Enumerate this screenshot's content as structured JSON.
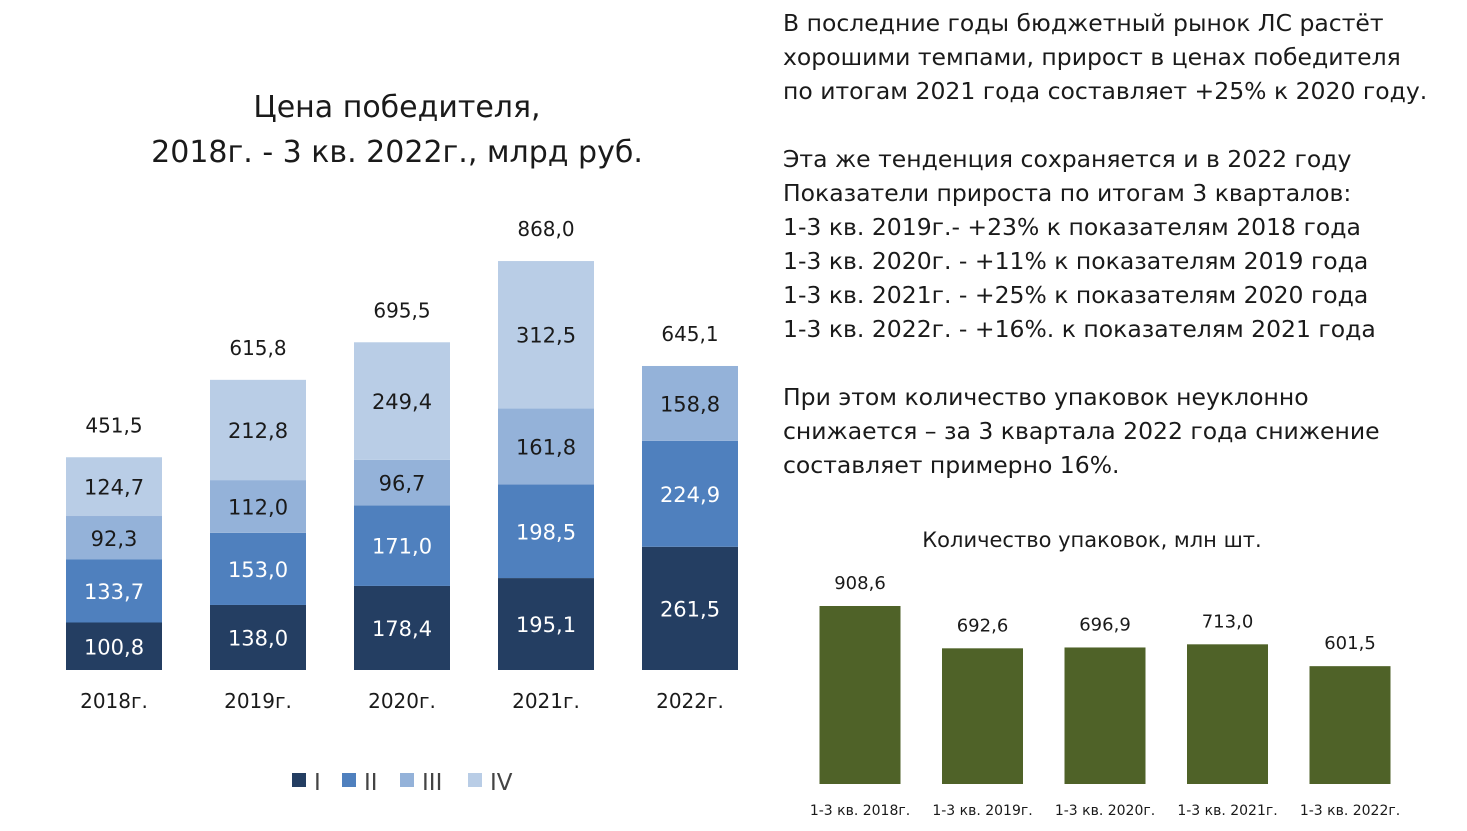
{
  "commentary": {
    "paragraphs": [
      {
        "lines": [
          "В последние годы бюджетный рынок ЛС растёт",
          "хорошими темпами, прирост в ценах победителя",
          "по итогам 2021 года составляет +25% к 2020 году."
        ]
      },
      {
        "lines": [
          "Эта же тенденция сохраняется и в 2022 году",
          "Показатели прироста по итогам 3 кварталов:",
          "1-3 кв. 2019г.- +23% к показателям 2018 года",
          "1-3 кв. 2020г. - +11% к показателям 2019 года",
          "1-3 кв. 2021г. - +25% к показателям 2020 года",
          "1-3 кв. 2022г. - +16%. к показателям 2021 года"
        ]
      },
      {
        "lines": [
          "При этом количество упаковок неуклонно",
          "снижается – за 3 квартала 2022 года снижение",
          "составляет примерно 16%."
        ]
      }
    ]
  },
  "chart_data": [
    {
      "type": "bar",
      "stacked": true,
      "title": "Цена победителя,\n2018г. - 3 кв. 2022г., млрд руб.",
      "categories": [
        "2018г.",
        "2019г.",
        "2020г.",
        "2021г.",
        "2022г."
      ],
      "series": [
        {
          "name": "I",
          "color": "#243e62",
          "values": [
            100.8,
            138.0,
            178.4,
            195.1,
            261.5
          ],
          "labels": [
            "100,8",
            "138,0",
            "178,4",
            "195,1",
            "261,5"
          ]
        },
        {
          "name": "II",
          "color": "#4f80be",
          "values": [
            133.7,
            153.0,
            171.0,
            198.5,
            224.9
          ],
          "labels": [
            "133,7",
            "153,0",
            "171,0",
            "198,5",
            "224,9"
          ]
        },
        {
          "name": "III",
          "color": "#94b2d9",
          "values": [
            92.3,
            112.0,
            96.7,
            161.8,
            158.8
          ],
          "labels": [
            "92,3",
            "112,0",
            "96,7",
            "161,8",
            "158,8"
          ]
        },
        {
          "name": "IV",
          "color": "#b9cde6",
          "values": [
            124.7,
            212.8,
            249.4,
            312.5,
            null
          ],
          "labels": [
            "124,7",
            "212,8",
            "249,4",
            "312,5",
            ""
          ]
        }
      ],
      "totals": [
        451.5,
        615.8,
        695.5,
        868.0,
        645.1
      ],
      "total_labels": [
        "451,5",
        "615,8",
        "695,5",
        "868,0",
        "645,1"
      ],
      "ylim": [
        0,
        868
      ],
      "grid": false,
      "legend": "bottom"
    },
    {
      "type": "bar",
      "title": "Количество упаковок, млн шт.",
      "categories": [
        "1-3 кв. 2018г.",
        "1-3 кв. 2019г.",
        "1-3 кв. 2020г.",
        "1-3 кв. 2021г.",
        "1-3 кв. 2022г."
      ],
      "values": [
        908.6,
        692.6,
        696.9,
        713.0,
        601.5
      ],
      "labels": [
        "908,6",
        "692,6",
        "696,9",
        "713,0",
        "601,5"
      ],
      "color": "#4f6228",
      "ylim": [
        0,
        908.6
      ],
      "grid": false
    }
  ]
}
